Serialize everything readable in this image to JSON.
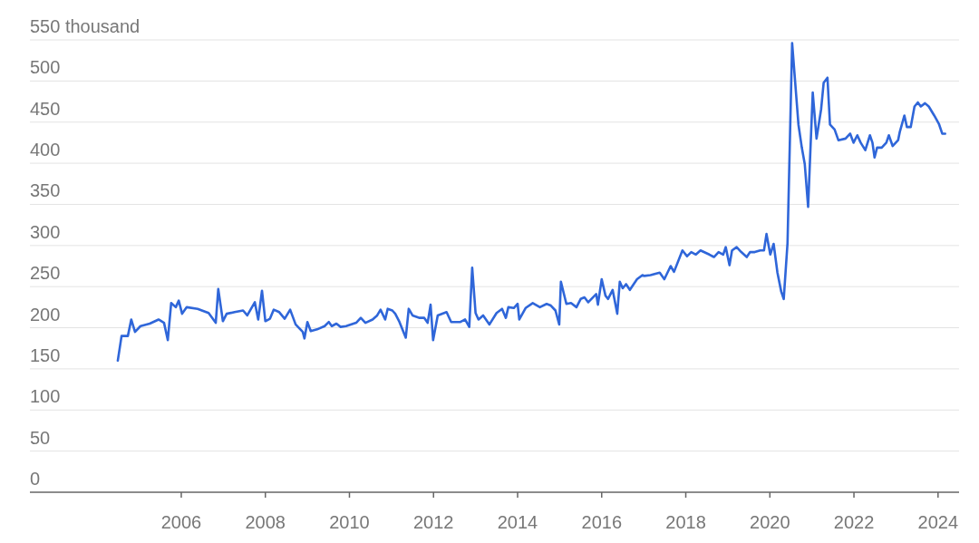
{
  "chart_data": {
    "type": "line",
    "x": [
      2004.49,
      2004.58,
      2004.73,
      2004.81,
      2004.9,
      2005.03,
      2005.25,
      2005.46,
      2005.59,
      2005.68,
      2005.76,
      2005.87,
      2005.94,
      2006.02,
      2006.13,
      2006.39,
      2006.65,
      2006.82,
      2006.88,
      2006.99,
      2007.08,
      2007.27,
      2007.47,
      2007.57,
      2007.75,
      2007.83,
      2007.92,
      2008.0,
      2008.11,
      2008.2,
      2008.33,
      2008.46,
      2008.59,
      2008.72,
      2008.89,
      2008.93,
      2009.0,
      2009.08,
      2009.23,
      2009.41,
      2009.51,
      2009.58,
      2009.69,
      2009.79,
      2009.92,
      2010.16,
      2010.27,
      2010.38,
      2010.55,
      2010.66,
      2010.74,
      2010.85,
      2010.91,
      2011.02,
      2011.09,
      2011.19,
      2011.34,
      2011.41,
      2011.5,
      2011.67,
      2011.78,
      2011.86,
      2011.93,
      2011.99,
      2012.1,
      2012.31,
      2012.42,
      2012.64,
      2012.75,
      2012.85,
      2012.92,
      2013.0,
      2013.07,
      2013.18,
      2013.33,
      2013.5,
      2013.63,
      2013.72,
      2013.78,
      2013.91,
      2014.0,
      2014.04,
      2014.19,
      2014.36,
      2014.53,
      2014.69,
      2014.79,
      2014.9,
      2014.99,
      2015.03,
      2015.16,
      2015.27,
      2015.4,
      2015.5,
      2015.59,
      2015.68,
      2015.87,
      2015.91,
      2016.0,
      2016.09,
      2016.15,
      2016.26,
      2016.37,
      2016.43,
      2016.5,
      2016.58,
      2016.67,
      2016.84,
      2016.97,
      2017.01,
      2017.16,
      2017.38,
      2017.49,
      2017.64,
      2017.72,
      2017.92,
      2018.03,
      2018.13,
      2018.24,
      2018.35,
      2018.56,
      2018.67,
      2018.78,
      2018.89,
      2018.95,
      2019.04,
      2019.1,
      2019.21,
      2019.32,
      2019.45,
      2019.53,
      2019.64,
      2019.77,
      2019.86,
      2019.92,
      2020.01,
      2020.09,
      2020.18,
      2020.27,
      2020.33,
      2020.42,
      2020.53,
      2020.68,
      2020.76,
      2020.83,
      2020.91,
      2021.02,
      2021.11,
      2021.22,
      2021.28,
      2021.37,
      2021.43,
      2021.54,
      2021.63,
      2021.8,
      2021.91,
      2021.99,
      2022.08,
      2022.16,
      2022.27,
      2022.38,
      2022.44,
      2022.49,
      2022.55,
      2022.66,
      2022.77,
      2022.83,
      2022.92,
      2023.05,
      2023.09,
      2023.2,
      2023.26,
      2023.35,
      2023.44,
      2023.52,
      2023.59,
      2023.69,
      2023.78,
      2023.91,
      2024.02,
      2024.1,
      2024.17
    ],
    "series": [
      {
        "color": "#2f66d9",
        "values": [
          160,
          190,
          190,
          210,
          195,
          202,
          205,
          210,
          206,
          185,
          230,
          225,
          233,
          217,
          225,
          223,
          218,
          206,
          247,
          208,
          217,
          219,
          221,
          215,
          231,
          210,
          245,
          208,
          211,
          222,
          219,
          211,
          222,
          204,
          195,
          187,
          207,
          196,
          198,
          202,
          207,
          202,
          205,
          201,
          202,
          206,
          212,
          206,
          210,
          215,
          222,
          210,
          223,
          221,
          217,
          207,
          188,
          223,
          215,
          212,
          212,
          206,
          228,
          185,
          215,
          219,
          207,
          207,
          210,
          201,
          273,
          218,
          210,
          215,
          204,
          218,
          223,
          212,
          225,
          224,
          229,
          210,
          224,
          230,
          225,
          229,
          227,
          221,
          204,
          256,
          229,
          230,
          225,
          235,
          237,
          231,
          241,
          228,
          259,
          239,
          235,
          246,
          217,
          256,
          248,
          253,
          246,
          259,
          264,
          263,
          264,
          267,
          259,
          275,
          268,
          294,
          287,
          292,
          289,
          294,
          289,
          286,
          292,
          289,
          298,
          276,
          294,
          298,
          292,
          286,
          292,
          292,
          294,
          294,
          314,
          289,
          302,
          267,
          244,
          235,
          303,
          546,
          447,
          419,
          399,
          347,
          486,
          430,
          466,
          498,
          504,
          447,
          441,
          428,
          430,
          436,
          425,
          434,
          425,
          416,
          434,
          425,
          407,
          419,
          419,
          425,
          434,
          421,
          428,
          438,
          458,
          444,
          444,
          469,
          474,
          469,
          473,
          469,
          458,
          448,
          436,
          436
        ]
      }
    ],
    "xlim": [
      2002.4,
      2024.5
    ],
    "xticks": [
      2006,
      2008,
      2010,
      2012,
      2014,
      2016,
      2018,
      2020,
      2022,
      2024
    ],
    "ylim": [
      0,
      550
    ],
    "yticks": [
      0,
      50,
      100,
      150,
      200,
      250,
      300,
      350,
      400,
      450,
      500,
      {
        "value": 550,
        "label": "550 thousand"
      }
    ],
    "grid": "y",
    "line_style": "solid"
  }
}
